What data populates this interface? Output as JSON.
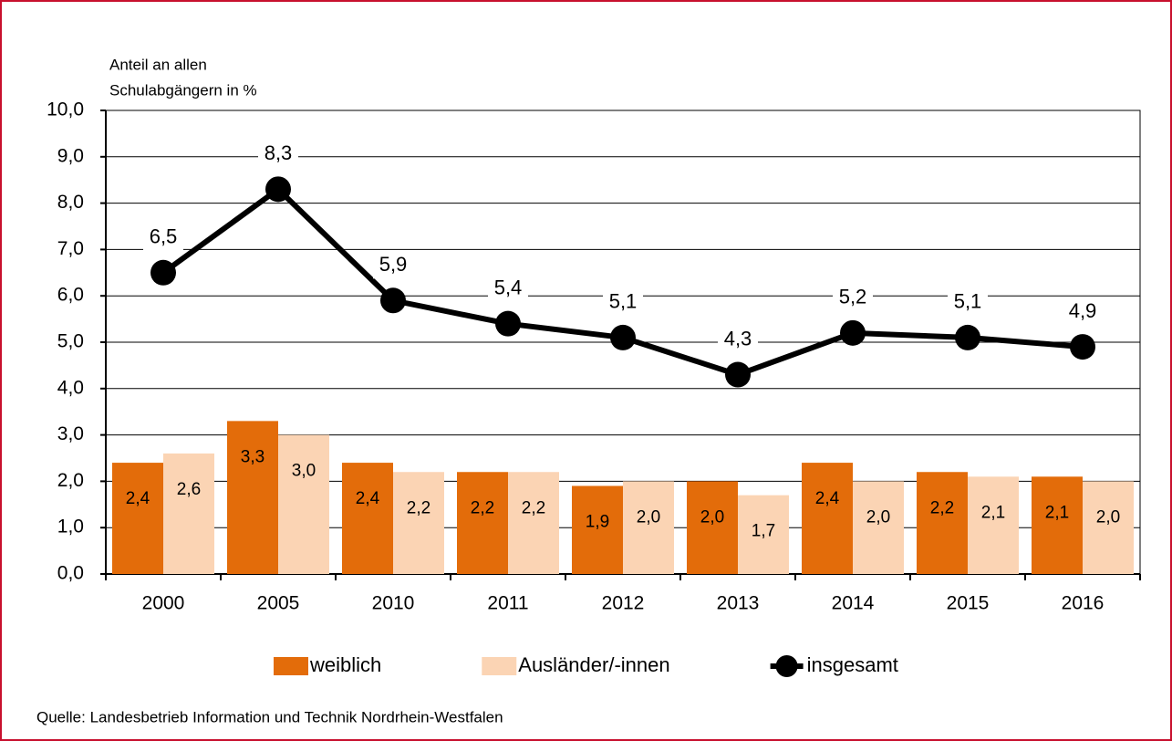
{
  "chart_data": {
    "type": "bar",
    "y_axis_label": [
      "Anteil an allen",
      "Schulabgängern in %"
    ],
    "categories": [
      "2000",
      "2005",
      "2010",
      "2011",
      "2012",
      "2013",
      "2014",
      "2015",
      "2016"
    ],
    "series": [
      {
        "name": "weiblich",
        "type": "bar",
        "color": "#e36c0a",
        "values": [
          2.4,
          3.3,
          2.4,
          2.2,
          1.9,
          2.0,
          2.4,
          2.2,
          2.1
        ],
        "value_labels": [
          "2,4",
          "3,3",
          "2,4",
          "2,2",
          "1,9",
          "2,0",
          "2,4",
          "2,2",
          "2,1"
        ]
      },
      {
        "name": "Ausländer/-innen",
        "type": "bar",
        "color": "#fbd4b4",
        "values": [
          2.6,
          3.0,
          2.2,
          2.2,
          2.0,
          1.7,
          2.0,
          2.1,
          2.0
        ],
        "value_labels": [
          "2,6",
          "3,0",
          "2,2",
          "2,2",
          "2,0",
          "1,7",
          "2,0",
          "2,1",
          "2,0"
        ]
      },
      {
        "name": "insgesamt",
        "type": "line",
        "color": "#000000",
        "values": [
          6.5,
          8.3,
          5.9,
          5.4,
          5.1,
          4.3,
          5.2,
          5.1,
          4.9
        ],
        "value_labels": [
          "6,5",
          "8,3",
          "5,9",
          "5,4",
          "5,1",
          "4,3",
          "5,2",
          "5,1",
          "4,9"
        ]
      }
    ],
    "ylim": [
      0,
      10
    ],
    "yticks": [
      {
        "value": 0,
        "label": "0,0"
      },
      {
        "value": 1,
        "label": "1,0"
      },
      {
        "value": 2,
        "label": "2,0"
      },
      {
        "value": 3,
        "label": "3,0"
      },
      {
        "value": 4,
        "label": "4,0"
      },
      {
        "value": 5,
        "label": "5,0"
      },
      {
        "value": 6,
        "label": "6,0"
      },
      {
        "value": 7,
        "label": "7,0"
      },
      {
        "value": 8,
        "label": "8,0"
      },
      {
        "value": 9,
        "label": "9,0"
      },
      {
        "value": 10,
        "label": "10,0"
      }
    ],
    "grid": true,
    "legend": "bottom",
    "source": "Quelle: Landesbetrieb Information und Technik Nordrhein-Westfalen"
  }
}
